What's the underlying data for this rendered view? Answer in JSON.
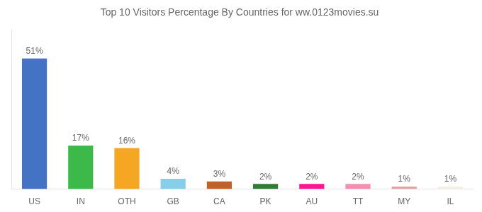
{
  "chart_data": {
    "type": "bar",
    "title": "Top 10 Visitors Percentage By Countries for ww.0123movies.su",
    "categories": [
      "US",
      "IN",
      "OTH",
      "GB",
      "CA",
      "PK",
      "AU",
      "TT",
      "MY",
      "IL"
    ],
    "values": [
      51,
      17,
      16,
      4,
      3,
      2,
      2,
      2,
      1,
      1
    ],
    "value_labels": [
      "51%",
      "17%",
      "16%",
      "4%",
      "3%",
      "2%",
      "2%",
      "2%",
      "1%",
      "1%"
    ],
    "colors": [
      "#4472C4",
      "#3DB94A",
      "#F5A623",
      "#87CEEB",
      "#C0622B",
      "#2E7D32",
      "#FF1493",
      "#F48FB1",
      "#E8A0A0",
      "#F5F0DC"
    ],
    "ylim": [
      0,
      62
    ],
    "data_labels": true,
    "tick_labels": "x",
    "grid": false
  }
}
